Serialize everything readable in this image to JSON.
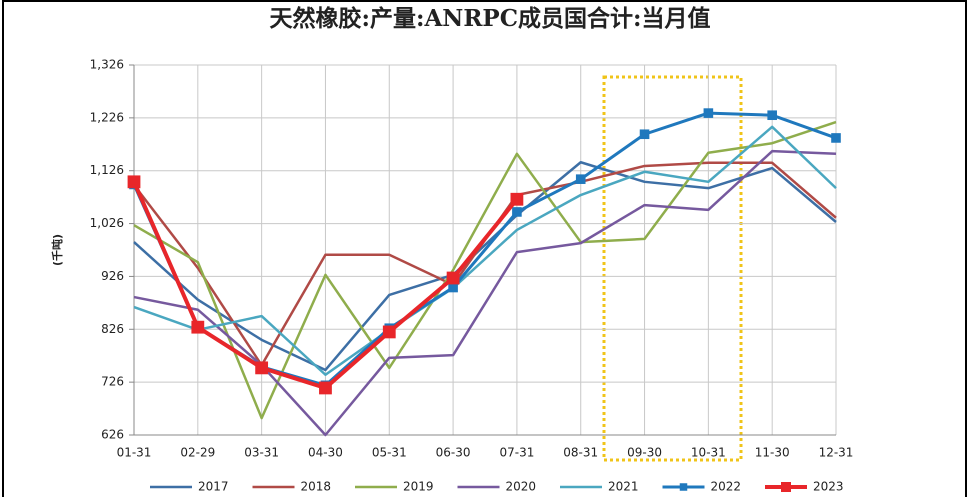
{
  "chart_data": {
    "type": "line",
    "title": "天然橡胶:产量:ANRPC成员国合计:当月值",
    "y_label": "(千吨)",
    "categories": [
      "01-31",
      "02-29",
      "03-31",
      "04-30",
      "05-31",
      "06-30",
      "07-31",
      "08-31",
      "09-30",
      "10-31",
      "11-30",
      "12-31"
    ],
    "ylim": [
      626,
      1326
    ],
    "yticks": [
      626,
      726,
      826,
      926,
      {
        "value": 1026,
        "label": "1,026"
      },
      {
        "value": 1126,
        "label": "1,126"
      },
      {
        "value": 1226,
        "label": "1,226"
      },
      {
        "value": 1326,
        "label": "1,326"
      }
    ],
    "grid": true,
    "legend": "bottom",
    "series": [
      {
        "name": "2017",
        "color": "#3d6fa5",
        "linewidth": 2.5,
        "values": [
          991,
          882,
          806,
          749,
          891,
          929,
          1042,
          1142,
          1105,
          1093,
          1131,
          1029
        ]
      },
      {
        "name": "2018",
        "color": "#b04a46",
        "linewidth": 2.5,
        "values": [
          1099,
          942,
          758,
          967,
          967,
          910,
          1080,
          1105,
          1135,
          1141,
          1141,
          1037
        ]
      },
      {
        "name": "2019",
        "color": "#8fad4c",
        "linewidth": 2.5,
        "values": [
          1023,
          953,
          658,
          929,
          753,
          938,
          1158,
          991,
          997,
          1160,
          1178,
          1218
        ]
      },
      {
        "name": "2020",
        "color": "#76599e",
        "linewidth": 2.5,
        "values": [
          887,
          863,
          758,
          626,
          772,
          777,
          972,
          989,
          1061,
          1052,
          1163,
          1158
        ]
      },
      {
        "name": "2021",
        "color": "#4aa7c0",
        "linewidth": 2.5,
        "values": [
          868,
          825,
          851,
          740,
          825,
          904,
          1014,
          1080,
          1124,
          1105,
          1209,
          1093
        ]
      },
      {
        "name": "2022",
        "color": "#1f78bd",
        "linewidth": 3,
        "marker": "square",
        "values": [
          1100,
          830,
          755,
          720,
          828,
          905,
          1048,
          1110,
          1195,
          1235,
          1231,
          1188
        ]
      },
      {
        "name": "2023",
        "color": "#e8262a",
        "linewidth": 4,
        "marker": "square",
        "values": [
          1105,
          830,
          753,
          715,
          821,
          923,
          1072,
          null,
          null,
          null,
          null,
          null
        ]
      }
    ]
  }
}
